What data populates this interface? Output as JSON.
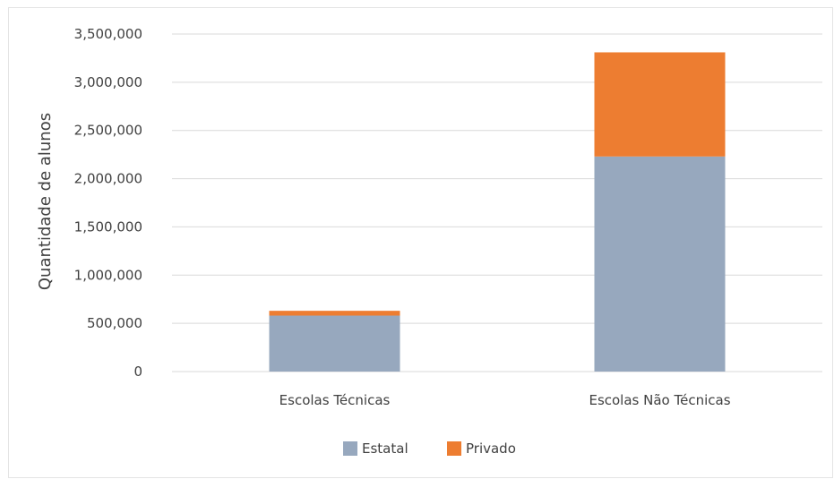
{
  "chart_data": {
    "type": "bar",
    "stacked": true,
    "categories": [
      "Escolas Técnicas",
      "Escolas Não Técnicas"
    ],
    "series": [
      {
        "name": "Estatal",
        "color": "#97A8BE",
        "values": [
          580000,
          2230000
        ]
      },
      {
        "name": "Privado",
        "color": "#ED7D31",
        "values": [
          50000,
          1080000
        ]
      }
    ],
    "title": "",
    "xlabel": "",
    "ylabel": "Quantidade de alunos",
    "ylim": [
      0,
      3500000
    ],
    "yticks": [
      0,
      500000,
      1000000,
      1500000,
      2000000,
      2500000,
      3000000,
      3500000
    ],
    "ytick_labels": [
      "0",
      "500,000",
      "1,000,000",
      "1,500,000",
      "2,000,000",
      "2,500,000",
      "3,000,000",
      "3,500,000"
    ],
    "grid": true,
    "legend_position": "bottom",
    "colors": {
      "gridline": "#D9D9D9",
      "text": "#404040"
    }
  }
}
